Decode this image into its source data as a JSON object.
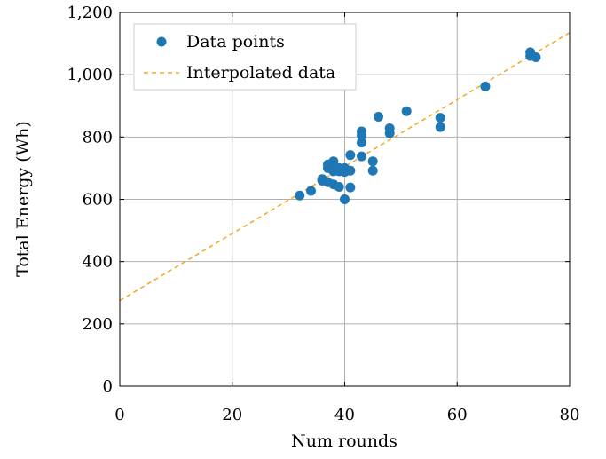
{
  "chart_data": {
    "type": "scatter",
    "xlabel": "Num rounds",
    "ylabel": "Total Energy (Wh)",
    "xlim": [
      0,
      80
    ],
    "ylim": [
      0,
      1200
    ],
    "x_ticks": [
      0,
      20,
      40,
      60,
      80
    ],
    "y_ticks": [
      0,
      200,
      400,
      600,
      800,
      1000,
      1200
    ],
    "x_tick_labels": [
      "0",
      "20",
      "40",
      "60",
      "80"
    ],
    "y_tick_labels": [
      "0",
      "200",
      "400",
      "600",
      "800",
      "1,000",
      "1,200"
    ],
    "grid": true,
    "legend_position": "top-left",
    "series": [
      {
        "name": "Data points",
        "kind": "scatter",
        "color": "#1f77b4",
        "points": [
          [
            32,
            612
          ],
          [
            34,
            627
          ],
          [
            36,
            660
          ],
          [
            36,
            665
          ],
          [
            37,
            655
          ],
          [
            37,
            700
          ],
          [
            37,
            712
          ],
          [
            38,
            648
          ],
          [
            38,
            690
          ],
          [
            38,
            705
          ],
          [
            38,
            722
          ],
          [
            39,
            640
          ],
          [
            39,
            690
          ],
          [
            39,
            700
          ],
          [
            40,
            600
          ],
          [
            40,
            688
          ],
          [
            40,
            700
          ],
          [
            41,
            638
          ],
          [
            41,
            692
          ],
          [
            41,
            742
          ],
          [
            43,
            738
          ],
          [
            43,
            782
          ],
          [
            43,
            805
          ],
          [
            43,
            818
          ],
          [
            45,
            692
          ],
          [
            45,
            722
          ],
          [
            46,
            865
          ],
          [
            48,
            812
          ],
          [
            48,
            828
          ],
          [
            51,
            883
          ],
          [
            57,
            832
          ],
          [
            57,
            862
          ],
          [
            65,
            962
          ],
          [
            73,
            1060
          ],
          [
            73,
            1072
          ],
          [
            74,
            1056
          ]
        ]
      },
      {
        "name": "Interpolated data",
        "kind": "line",
        "color": "#f5a623",
        "dashed": true,
        "intercept": 275,
        "slope": 10.75
      }
    ]
  }
}
